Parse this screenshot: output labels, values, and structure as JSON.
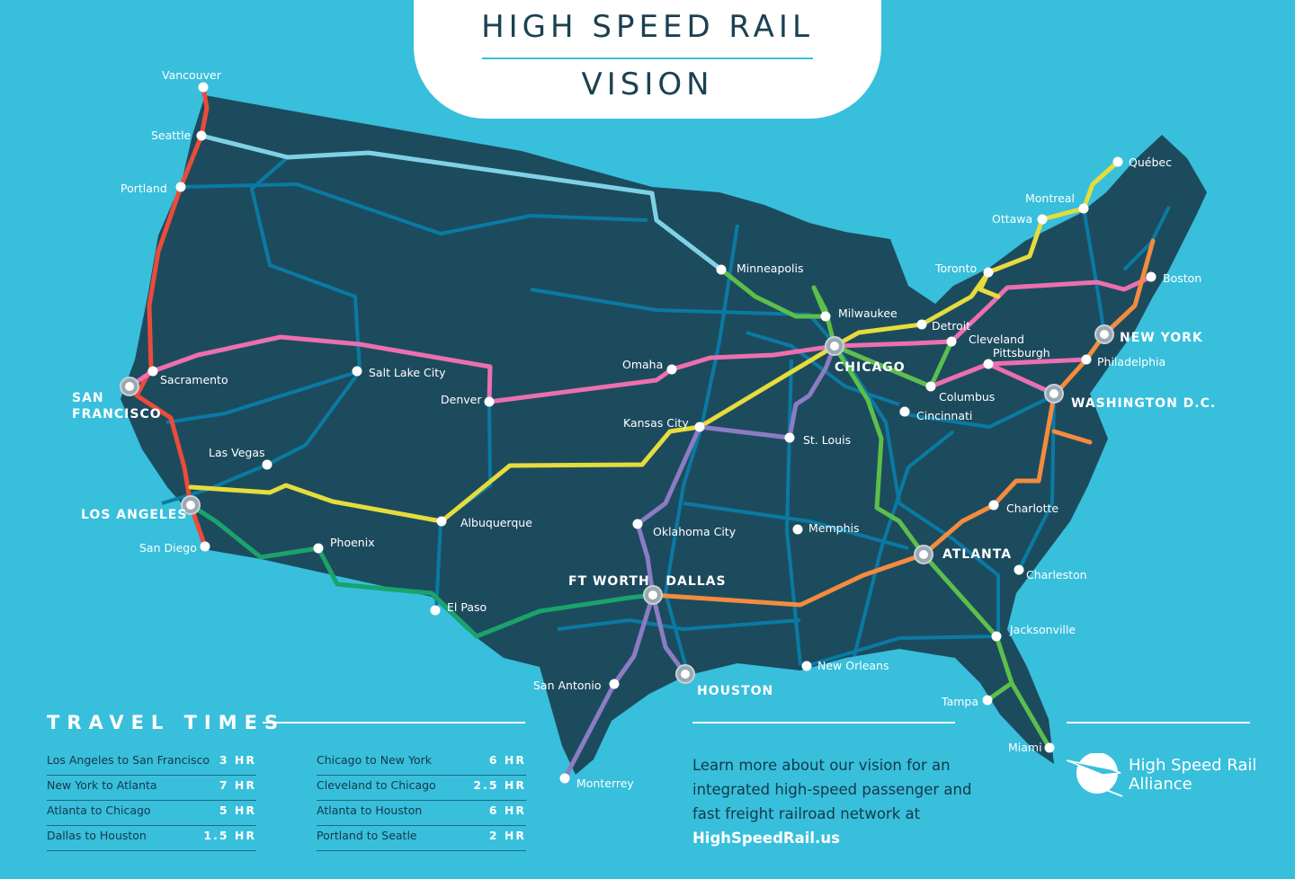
{
  "title": {
    "line1": "HIGH SPEED RAIL",
    "line2": "VISION"
  },
  "colors": {
    "background": "#38bfdc",
    "land": "#1d4b5e",
    "regional_network": "#0a7aa3",
    "red": "#ec4b3b",
    "light_blue": "#7fd2e6",
    "pink": "#ec6fb0",
    "yellow": "#e6dc3c",
    "green": "#1aa36a",
    "lime": "#5cbf4a",
    "orange": "#f48b3f",
    "purple": "#8b7cc4"
  },
  "cities": [
    {
      "name": "Vancouver"
    },
    {
      "name": "Seattle"
    },
    {
      "name": "Portland"
    },
    {
      "name": "Sacramento"
    },
    {
      "name": "SAN FRANCISCO",
      "major": true
    },
    {
      "name": "Salt Lake City"
    },
    {
      "name": "Denver"
    },
    {
      "name": "Las Vegas"
    },
    {
      "name": "LOS ANGELES",
      "major": true
    },
    {
      "name": "San Diego"
    },
    {
      "name": "Phoenix"
    },
    {
      "name": "Albuquerque"
    },
    {
      "name": "El Paso"
    },
    {
      "name": "Omaha"
    },
    {
      "name": "Kansas City"
    },
    {
      "name": "Minneapolis"
    },
    {
      "name": "Milwaukee"
    },
    {
      "name": "CHICAGO",
      "major": true
    },
    {
      "name": "St. Louis"
    },
    {
      "name": "Oklahoma City"
    },
    {
      "name": "Memphis"
    },
    {
      "name": "FT WORTH   DALLAS",
      "major": true
    },
    {
      "name": "San Antonio"
    },
    {
      "name": "HOUSTON",
      "major": true
    },
    {
      "name": "Monterrey"
    },
    {
      "name": "New Orleans"
    },
    {
      "name": "Detroit"
    },
    {
      "name": "Toronto"
    },
    {
      "name": "Cleveland"
    },
    {
      "name": "Pittsburgh"
    },
    {
      "name": "Columbus"
    },
    {
      "name": "Cincinnati"
    },
    {
      "name": "ATLANTA",
      "major": true
    },
    {
      "name": "Charlotte"
    },
    {
      "name": "Charleston"
    },
    {
      "name": "Jacksonville"
    },
    {
      "name": "Tampa"
    },
    {
      "name": "Miami"
    },
    {
      "name": "WASHINGTON D.C.",
      "major": true
    },
    {
      "name": "Philadelphia"
    },
    {
      "name": "NEW YORK",
      "major": true
    },
    {
      "name": "Boston"
    },
    {
      "name": "Ottawa"
    },
    {
      "name": "Montreal"
    },
    {
      "name": "Québec"
    }
  ],
  "travel_times": {
    "title": "TRAVEL TIMES",
    "left": [
      {
        "route": "Los Angeles to San Francisco",
        "time": "3 HR"
      },
      {
        "route": "New York to Atlanta",
        "time": "7 HR"
      },
      {
        "route": "Atlanta to Chicago",
        "time": "5 HR"
      },
      {
        "route": "Dallas to Houston",
        "time": "1.5 HR"
      }
    ],
    "right": [
      {
        "route": "Chicago to New York",
        "time": "6 HR"
      },
      {
        "route": "Cleveland to Chicago",
        "time": "2.5 HR"
      },
      {
        "route": "Atlanta to Houston",
        "time": "6 HR"
      },
      {
        "route": "Portland to Seatle",
        "time": "2 HR"
      }
    ]
  },
  "footer": {
    "learn_more": "Learn more about our vision for an integrated high-speed passenger and fast freight railroad network at",
    "url": "HighSpeedRail.us",
    "logo_line1": "High Speed Rail",
    "logo_line2": "Alliance"
  }
}
